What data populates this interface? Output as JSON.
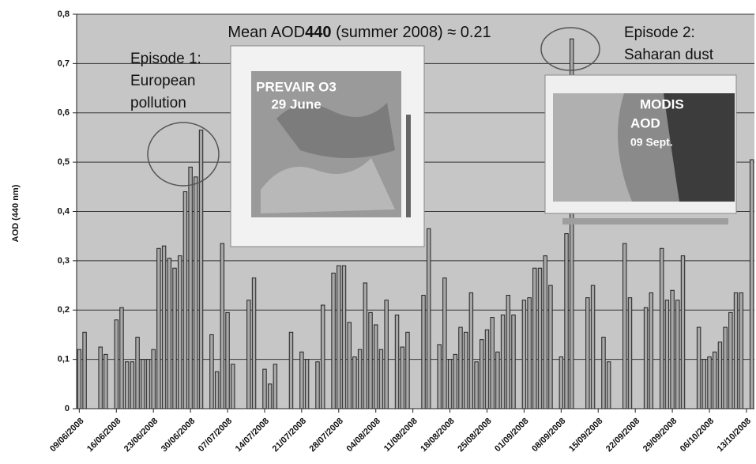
{
  "chart_data": {
    "type": "bar",
    "title_parts": [
      "Mean AOD",
      "440",
      " (summer 2008) ≈ 0.21"
    ],
    "y_label": "AOD (440 nm)",
    "annotations": [
      "Episode 1:",
      "European",
      "pollution",
      "Episode 2:",
      "Saharan dust",
      "PREVAIR O3",
      "29 June",
      "MODIS",
      "AOD",
      "09 Sept."
    ],
    "categories": [
      "09/06/2008",
      null,
      null,
      null,
      null,
      null,
      null,
      "16/06/2008",
      null,
      null,
      null,
      null,
      null,
      null,
      "23/06/2008",
      null,
      null,
      null,
      null,
      null,
      null,
      "30/06/2008",
      null,
      null,
      null,
      null,
      null,
      null,
      "07/07/2008",
      null,
      null,
      null,
      null,
      null,
      null,
      "14/07/2008",
      null,
      null,
      null,
      null,
      null,
      null,
      "21/07/2008",
      null,
      null,
      null,
      null,
      null,
      null,
      "28/07/2008",
      null,
      null,
      null,
      null,
      null,
      null,
      "04/08/2008",
      null,
      null,
      null,
      null,
      null,
      null,
      "11/08/2008",
      null,
      null,
      null,
      null,
      null,
      null,
      "18/08/2008",
      null,
      null,
      null,
      null,
      null,
      null,
      "25/08/2008",
      null,
      null,
      null,
      null,
      null,
      null,
      "01/09/2008",
      null,
      null,
      null,
      null,
      null,
      null,
      "08/09/2008",
      null,
      null,
      null,
      null,
      null,
      null,
      "15/09/2008",
      null,
      null,
      null,
      null,
      null,
      null,
      "22/09/2008",
      null,
      null,
      null,
      null,
      null,
      null,
      "29/09/2008",
      null,
      null,
      null,
      null,
      null,
      null,
      "06/10/2008",
      null,
      null,
      null,
      null,
      null,
      null,
      "13/10/2008",
      null
    ],
    "values": [
      0.12,
      0.155,
      null,
      null,
      0.125,
      0.11,
      null,
      0.18,
      0.205,
      0.095,
      0.095,
      0.145,
      0.1,
      0.1,
      0.12,
      0.325,
      0.33,
      0.305,
      0.285,
      0.31,
      0.44,
      0.49,
      0.47,
      0.565,
      null,
      0.15,
      0.075,
      0.335,
      0.195,
      0.09,
      null,
      null,
      0.22,
      0.265,
      null,
      0.08,
      0.05,
      0.09,
      null,
      null,
      0.155,
      null,
      0.115,
      0.1,
      null,
      0.095,
      0.21,
      null,
      0.275,
      0.29,
      0.29,
      0.175,
      0.105,
      0.12,
      0.255,
      0.195,
      0.17,
      0.12,
      0.22,
      null,
      0.19,
      0.125,
      0.155,
      null,
      null,
      0.23,
      0.365,
      null,
      0.13,
      0.265,
      0.1,
      0.11,
      0.165,
      0.155,
      0.235,
      0.095,
      0.14,
      0.16,
      0.185,
      0.115,
      0.19,
      0.23,
      0.19,
      null,
      0.22,
      0.225,
      0.285,
      0.285,
      0.31,
      0.25,
      null,
      0.105,
      0.355,
      0.75,
      null,
      null,
      0.225,
      0.25,
      null,
      0.145,
      0.095,
      null,
      null,
      0.335,
      0.225,
      null,
      null,
      0.205,
      0.235,
      null,
      0.325,
      0.22,
      0.24,
      0.22,
      0.31,
      null,
      null,
      0.165,
      0.1,
      0.105,
      0.115,
      0.135,
      0.165,
      0.195,
      0.235,
      0.235,
      null,
      0.505
    ],
    "color": "#a8a8a8",
    "ylim": [
      0,
      0.8
    ],
    "yticks": [
      0,
      {
        "value": 0.1,
        "label": "0,1"
      },
      {
        "value": 0.2,
        "label": "0,2"
      },
      {
        "value": 0.3,
        "label": "0,3"
      },
      {
        "value": 0.4,
        "label": "0,4"
      },
      {
        "value": 0.5,
        "label": "0,5"
      },
      {
        "value": 0.6,
        "label": "0,6"
      },
      {
        "value": 0.7,
        "label": "0,7"
      },
      {
        "value": 0.8,
        "label": "0,8"
      }
    ],
    "grid": true
  }
}
